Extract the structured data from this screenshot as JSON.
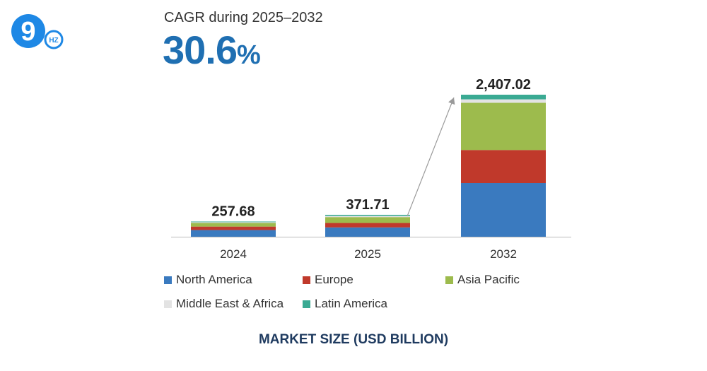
{
  "logo": {
    "main_glyph": "9",
    "sub_text": "HZ",
    "color": "#1e88e5"
  },
  "header": {
    "cagr_label": "CAGR during 2025–2032",
    "cagr_number": "30.6",
    "cagr_unit": "%"
  },
  "colors": {
    "accent": "#1f6fb2",
    "north_america": "#3a7abf",
    "europe": "#c0392b",
    "asia_pacific": "#9dbb4d",
    "middle_east_africa": "#e3e3e3",
    "latin_america": "#3aaa93"
  },
  "chart_data": {
    "type": "bar",
    "stacked": true,
    "categories": [
      "2024",
      "2025",
      "2032"
    ],
    "totals": [
      "257.68",
      "371.71",
      "2,407.02"
    ],
    "total_values": [
      257.68,
      371.71,
      2407.02
    ],
    "series": [
      {
        "name": "North America",
        "values": [
          113,
          158,
          910
        ]
      },
      {
        "name": "Europe",
        "values": [
          59,
          75,
          560
        ]
      },
      {
        "name": "Asia Pacific",
        "values": [
          63,
          100,
          800
        ]
      },
      {
        "name": "Middle East & Africa",
        "values": [
          12,
          20,
          58
        ]
      },
      {
        "name": "Latin America",
        "values": [
          10.68,
          18.71,
          79.02
        ]
      }
    ],
    "ylim": [
      0,
      2407.02
    ],
    "grid": false,
    "legend_position": "bottom",
    "xlabel": "MARKET SIZE (USD BILLION)"
  }
}
